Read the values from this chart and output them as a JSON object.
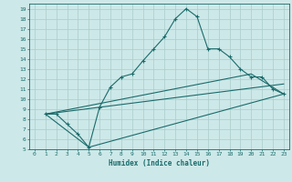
{
  "xlabel": "Humidex (Indice chaleur)",
  "bg_color": "#cde8e8",
  "line_color": "#1a6b6b",
  "grid_color": "#b8d8d8",
  "xlim": [
    -0.5,
    23.5
  ],
  "ylim": [
    5,
    19.5
  ],
  "xticks": [
    0,
    1,
    2,
    3,
    4,
    5,
    6,
    7,
    8,
    9,
    10,
    11,
    12,
    13,
    14,
    15,
    16,
    17,
    18,
    19,
    20,
    21,
    22,
    23
  ],
  "yticks": [
    5,
    6,
    7,
    8,
    9,
    10,
    11,
    12,
    13,
    14,
    15,
    16,
    17,
    18,
    19
  ],
  "series0": {
    "x": [
      1,
      2,
      3,
      4,
      5,
      6,
      7,
      8,
      9,
      10,
      11,
      12,
      13,
      14,
      15,
      16,
      17,
      18,
      19,
      20,
      21,
      22,
      23
    ],
    "y": [
      8.5,
      8.5,
      7.5,
      6.5,
      5.2,
      9.2,
      11.2,
      12.2,
      12.5,
      13.8,
      15.0,
      16.2,
      18.0,
      19.0,
      18.2,
      15.0,
      15.0,
      14.2,
      13.0,
      12.2,
      12.2,
      11.0,
      10.5
    ]
  },
  "series1": {
    "x": [
      1,
      5,
      23
    ],
    "y": [
      8.5,
      5.2,
      10.5
    ]
  },
  "series2": {
    "x": [
      1,
      23
    ],
    "y": [
      8.5,
      11.5
    ]
  },
  "series3": {
    "x": [
      1,
      20,
      23
    ],
    "y": [
      8.5,
      12.5,
      10.5
    ]
  }
}
